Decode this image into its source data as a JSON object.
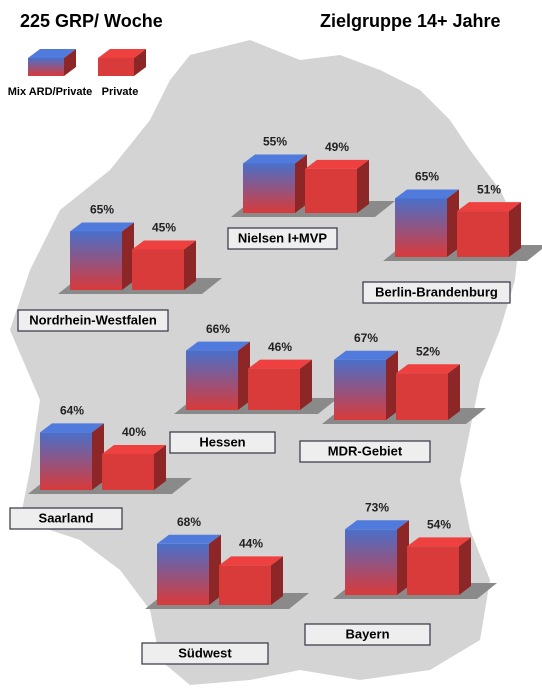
{
  "chart_data": {
    "type": "bar",
    "title": "225 GRP/ Woche",
    "subtitle": "Zielgruppe 14+ Jahre",
    "categories": [
      "Nielsen I+MVP",
      "Berlin-Brandenburg",
      "Nordrhein-Westfalen",
      "Hessen",
      "MDR-Gebiet",
      "Saarland",
      "Südwest",
      "Bayern"
    ],
    "series": [
      {
        "name": "Mix ARD/Private",
        "color": "#4a6fc9",
        "values": [
          55,
          65,
          65,
          66,
          67,
          64,
          68,
          73
        ],
        "value_labels": [
          "55%",
          "65%",
          "65%",
          "66%",
          "67%",
          "64%",
          "68%",
          "73%"
        ]
      },
      {
        "name": "Private",
        "color": "#d93a3a",
        "values": [
          49,
          51,
          45,
          46,
          52,
          40,
          44,
          54
        ],
        "value_labels": [
          "49%",
          "51%",
          "45%",
          "46%",
          "52%",
          "40%",
          "44%",
          "54%"
        ]
      }
    ]
  }
}
